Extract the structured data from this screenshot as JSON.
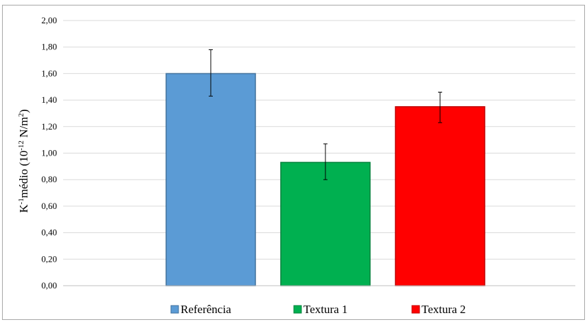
{
  "chart_data": {
    "type": "bar",
    "categories": [
      "Referência",
      "Textura 1",
      "Textura 2"
    ],
    "values": [
      1.6,
      0.93,
      1.35
    ],
    "error_upper": [
      1.78,
      1.07,
      1.46
    ],
    "error_lower": [
      1.43,
      0.8,
      1.23
    ],
    "colors": [
      "#5b9bd5",
      "#00b050",
      "#ff0000"
    ],
    "border_colors": [
      "#41719c",
      "#00803a",
      "#c00000"
    ],
    "ylabel": {
      "prefix": "K",
      "sup1": "-1",
      "mid": "médio (10",
      "sup2": "-12",
      "unit": " N/m",
      "sup3": "2",
      "suffix": ")"
    },
    "ylim": [
      0,
      2.0
    ],
    "yticks": [
      "0,00",
      "0,20",
      "0,40",
      "0,60",
      "0,80",
      "1,00",
      "1,20",
      "1,40",
      "1,60",
      "1,80",
      "2,00"
    ],
    "grid": true,
    "legend_position": "bottom"
  }
}
